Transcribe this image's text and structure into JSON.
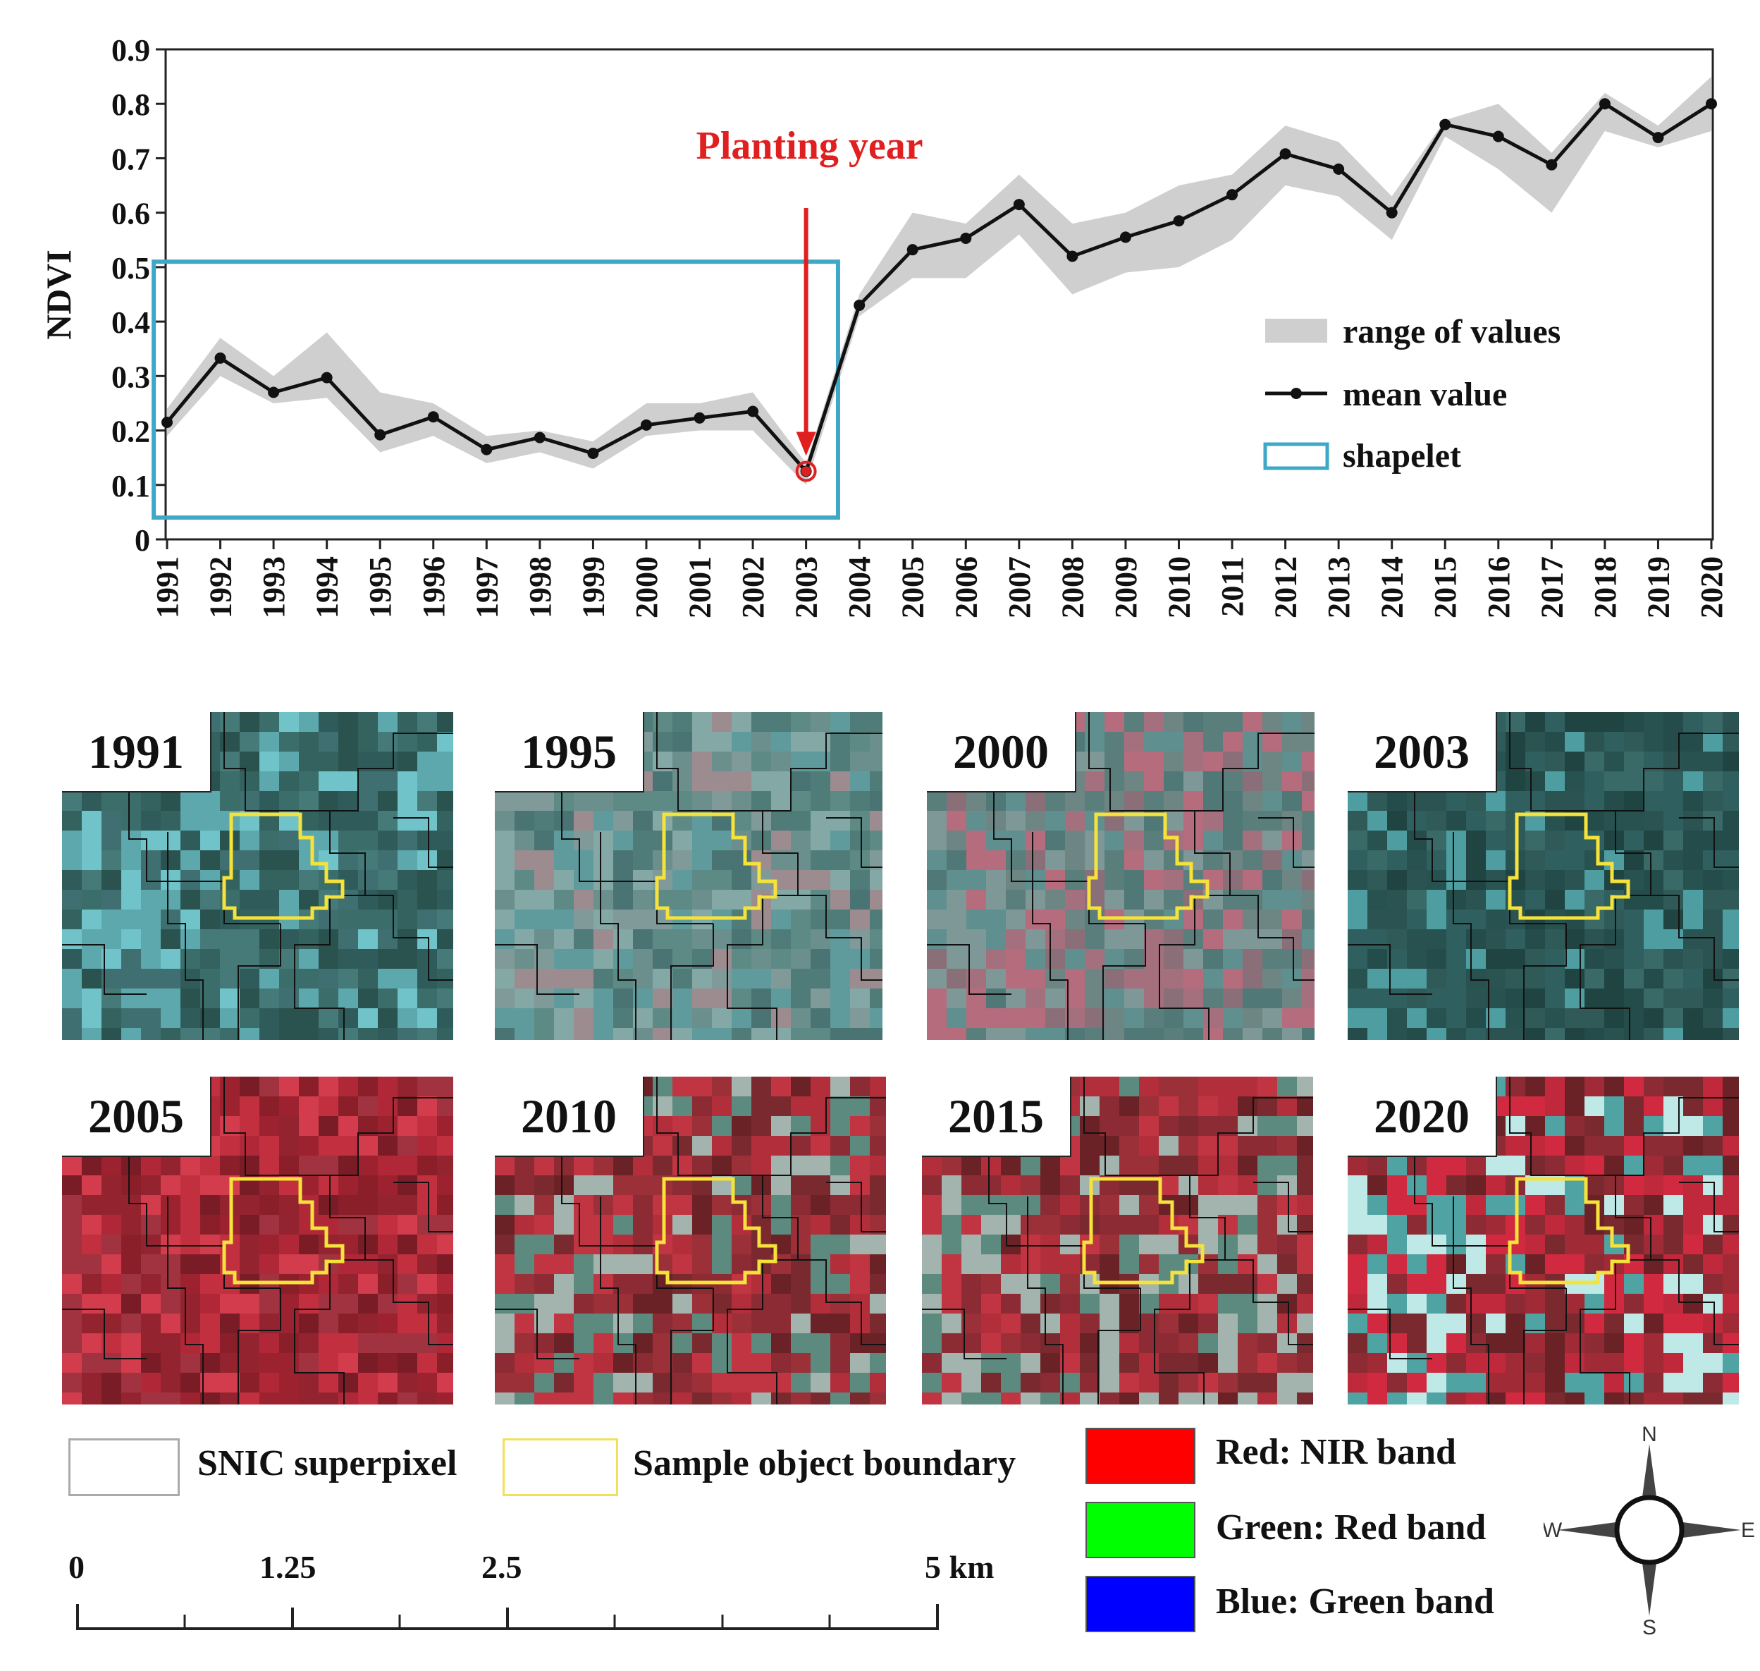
{
  "chart_data": {
    "type": "line",
    "ylabel": "NDVI",
    "ylim": [
      0,
      0.9
    ],
    "yticks": [
      "0",
      "0.1",
      "0.2",
      "0.3",
      "0.4",
      "0.5",
      "0.6",
      "0.7",
      "0.8",
      "0.9"
    ],
    "categories": [
      "1991",
      "1992",
      "1993",
      "1994",
      "1995",
      "1996",
      "1997",
      "1998",
      "1999",
      "2000",
      "2001",
      "2002",
      "2003",
      "2004",
      "2005",
      "2006",
      "2007",
      "2008",
      "2009",
      "2010",
      "2011",
      "2012",
      "2013",
      "2014",
      "2015",
      "2016",
      "2017",
      "2018",
      "2019",
      "2020"
    ],
    "series": [
      {
        "name": "mean value",
        "values": [
          0.215,
          0.333,
          0.27,
          0.297,
          0.192,
          0.225,
          0.165,
          0.187,
          0.158,
          0.21,
          0.223,
          0.235,
          0.125,
          0.43,
          0.532,
          0.553,
          0.615,
          0.52,
          0.555,
          0.585,
          0.633,
          0.708,
          0.68,
          0.6,
          0.762,
          0.74,
          0.688,
          0.8,
          0.738,
          0.8
        ]
      },
      {
        "name": "range of values (upper)",
        "values": [
          0.24,
          0.37,
          0.3,
          0.38,
          0.27,
          0.25,
          0.19,
          0.2,
          0.18,
          0.25,
          0.25,
          0.27,
          0.14,
          0.45,
          0.6,
          0.58,
          0.67,
          0.58,
          0.6,
          0.65,
          0.67,
          0.76,
          0.73,
          0.63,
          0.77,
          0.8,
          0.71,
          0.82,
          0.76,
          0.85
        ]
      },
      {
        "name": "range of values (lower)",
        "values": [
          0.19,
          0.3,
          0.25,
          0.26,
          0.16,
          0.19,
          0.14,
          0.16,
          0.13,
          0.19,
          0.2,
          0.2,
          0.1,
          0.41,
          0.48,
          0.48,
          0.56,
          0.45,
          0.49,
          0.5,
          0.55,
          0.65,
          0.63,
          0.55,
          0.74,
          0.68,
          0.6,
          0.75,
          0.72,
          0.75
        ]
      }
    ],
    "shapelet": {
      "x_start": "1991",
      "x_end": "2003",
      "y_range": [
        0.04,
        0.51
      ]
    },
    "annotation": {
      "text": "Planting year",
      "year": "2003",
      "value": 0.125,
      "color": "#e02020"
    },
    "legend": {
      "position": "bottom-right",
      "items": [
        {
          "label": "range of values"
        },
        {
          "label": "mean value"
        },
        {
          "label": "shapelet"
        }
      ]
    },
    "colors": {
      "line": "#111111",
      "band": "#cfcfcf",
      "shapelet": "#3fa7c7",
      "annotation": "#e02020"
    }
  },
  "tiles": [
    {
      "year": "1991",
      "palette": "teal"
    },
    {
      "year": "1995",
      "palette": "teal-light"
    },
    {
      "year": "2000",
      "palette": "teal-pink"
    },
    {
      "year": "2003",
      "palette": "teal-dark"
    },
    {
      "year": "2005",
      "palette": "red"
    },
    {
      "year": "2010",
      "palette": "red-mixed"
    },
    {
      "year": "2015",
      "palette": "red-mixed"
    },
    {
      "year": "2020",
      "palette": "red-cyan"
    }
  ],
  "map_legend": {
    "superpixel": "SNIC superpixel",
    "boundary": "Sample object boundary",
    "bands": [
      {
        "label": "Red: NIR band",
        "color": "#ff0000"
      },
      {
        "label": "Green: Red band",
        "color": "#00ff00"
      },
      {
        "label": "Blue: Green band",
        "color": "#0000ff"
      }
    ]
  },
  "scale_bar": {
    "labels": [
      "0",
      "1.25",
      "2.5",
      "5 km"
    ],
    "max_km": 5
  },
  "compass": {
    "n": "N",
    "s": "S",
    "e": "E",
    "w": "W"
  }
}
